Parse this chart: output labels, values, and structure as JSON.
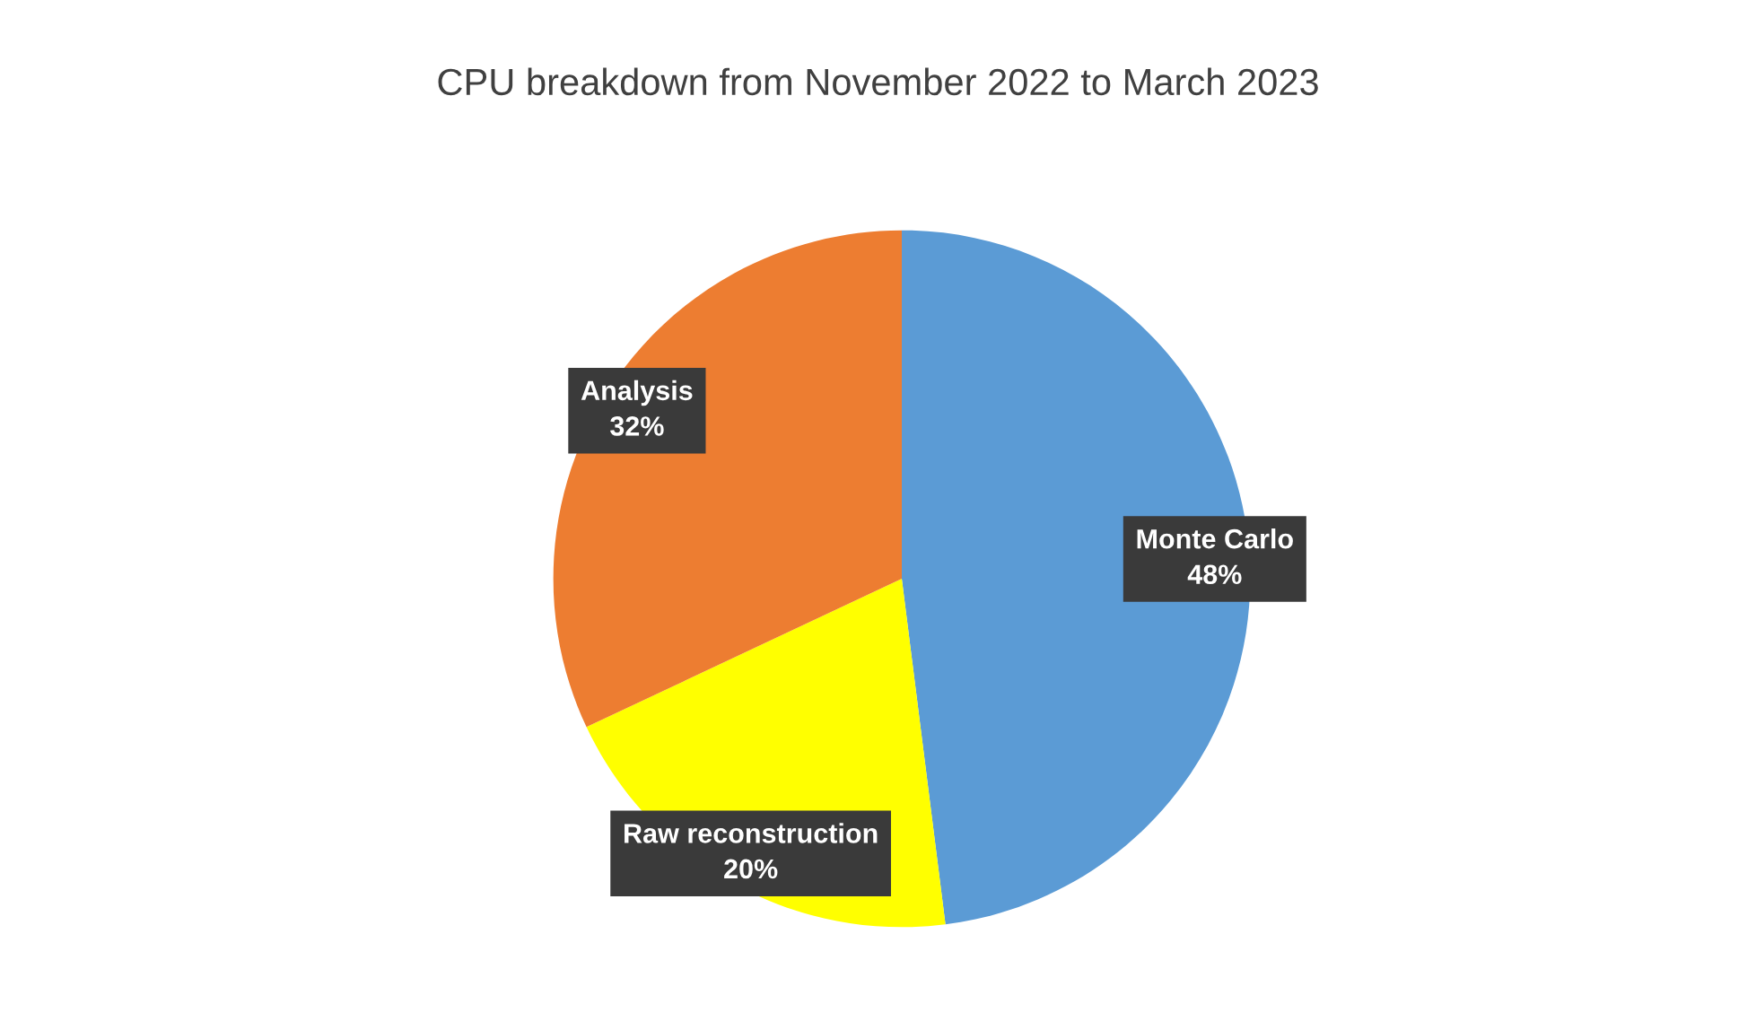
{
  "chart_data": {
    "type": "pie",
    "title": "CPU breakdown from November 2022 to March 2023",
    "categories": [
      "Monte Carlo",
      "Raw reconstruction",
      "Analysis"
    ],
    "values": [
      48,
      20,
      32
    ],
    "colors": [
      "#5b9bd5",
      "#ffff00",
      "#ed7d31"
    ],
    "value_labels": [
      "48%",
      "20%",
      "32%"
    ],
    "legend": false
  }
}
